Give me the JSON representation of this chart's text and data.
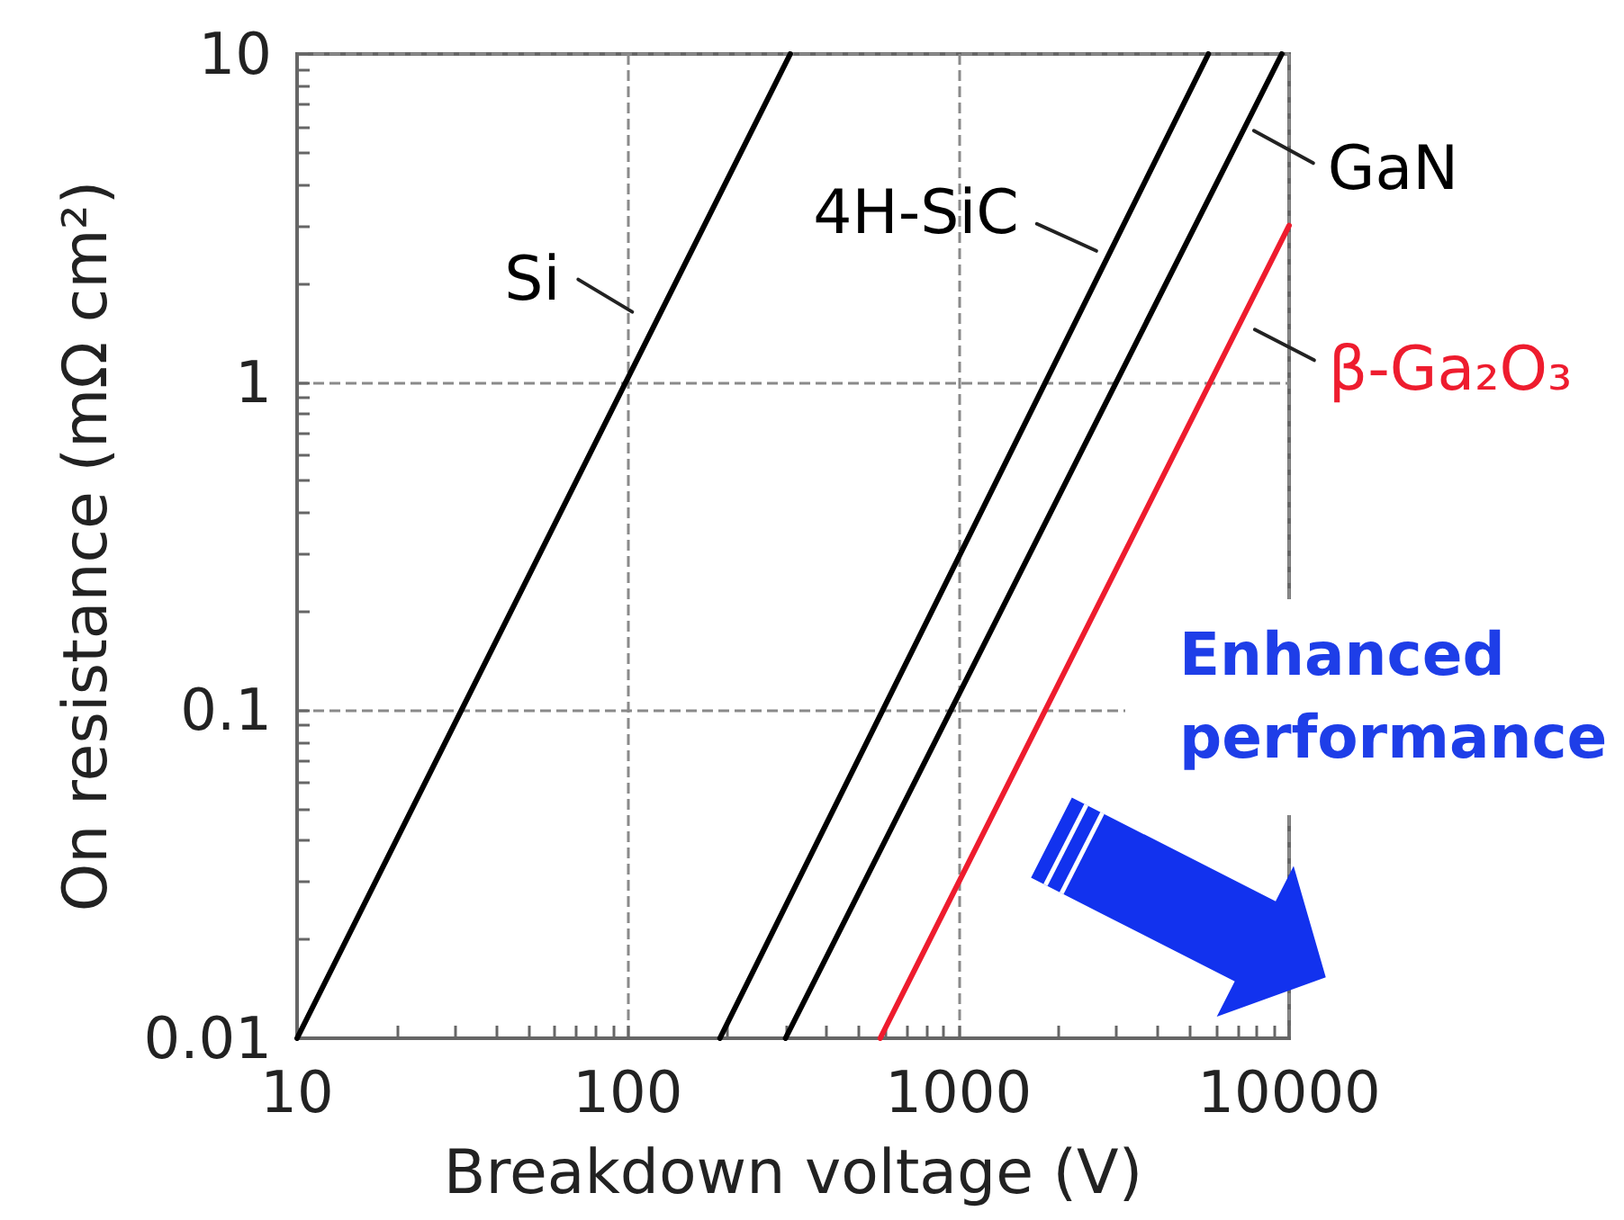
{
  "chart_data": {
    "type": "line",
    "xlabel": "Breakdown voltage (V)",
    "ylabel": "On resistance (mΩ cm²)",
    "annotations": [
      "Enhanced performance"
    ],
    "series": [
      {
        "name": "Si",
        "color": "#000000",
        "x": [
          10,
          310
        ],
        "values": [
          0.01,
          10
        ]
      },
      {
        "name": "4H-SiC",
        "color": "#000000",
        "x": [
          190,
          5700
        ],
        "values": [
          0.01,
          10
        ]
      },
      {
        "name": "GaN",
        "color": "#000000",
        "x": [
          300,
          9500
        ],
        "values": [
          0.01,
          10
        ]
      },
      {
        "name": "β-Ga₂O₃",
        "color": "#ee1c2e",
        "x": [
          580,
          10000
        ],
        "values": [
          0.01,
          3
        ]
      }
    ],
    "xlim": [
      10,
      10000
    ],
    "ylim": [
      0.01,
      10
    ],
    "xticks": [
      10,
      {
        "value": 20,
        "label": null
      },
      {
        "value": 30,
        "label": null
      },
      {
        "value": 40,
        "label": null
      },
      {
        "value": 50,
        "label": null
      },
      {
        "value": 60,
        "label": null
      },
      {
        "value": 70,
        "label": null
      },
      {
        "value": 80,
        "label": null
      },
      {
        "value": 90,
        "label": null
      },
      100,
      {
        "value": 200,
        "label": null
      },
      {
        "value": 300,
        "label": null
      },
      {
        "value": 400,
        "label": null
      },
      {
        "value": 500,
        "label": null
      },
      {
        "value": 600,
        "label": null
      },
      {
        "value": 700,
        "label": null
      },
      {
        "value": 800,
        "label": null
      },
      {
        "value": 900,
        "label": null
      },
      1000,
      {
        "value": 2000,
        "label": null
      },
      {
        "value": 3000,
        "label": null
      },
      {
        "value": 4000,
        "label": null
      },
      {
        "value": 5000,
        "label": null
      },
      {
        "value": 6000,
        "label": null
      },
      {
        "value": 7000,
        "label": null
      },
      {
        "value": 8000,
        "label": null
      },
      {
        "value": 9000,
        "label": null
      },
      10000
    ],
    "yticks": [
      0.01,
      {
        "value": 0.02,
        "label": null
      },
      {
        "value": 0.03,
        "label": null
      },
      {
        "value": 0.04,
        "label": null
      },
      {
        "value": 0.05,
        "label": null
      },
      {
        "value": 0.06,
        "label": null
      },
      {
        "value": 0.07,
        "label": null
      },
      {
        "value": 0.08,
        "label": null
      },
      {
        "value": 0.09,
        "label": null
      },
      0.1,
      {
        "value": 0.2,
        "label": null
      },
      {
        "value": 0.3,
        "label": null
      },
      {
        "value": 0.4,
        "label": null
      },
      {
        "value": 0.5,
        "label": null
      },
      {
        "value": 0.6,
        "label": null
      },
      {
        "value": 0.7,
        "label": null
      },
      {
        "value": 0.8,
        "label": null
      },
      {
        "value": 0.9,
        "label": null
      },
      1,
      {
        "value": 2,
        "label": null
      },
      {
        "value": 3,
        "label": null
      },
      {
        "value": 4,
        "label": null
      },
      {
        "value": 5,
        "label": null
      },
      {
        "value": 6,
        "label": null
      },
      {
        "value": 7,
        "label": null
      },
      {
        "value": 8,
        "label": null
      },
      {
        "value": 9,
        "label": null
      },
      10
    ],
    "log": "xy",
    "grid": true
  }
}
